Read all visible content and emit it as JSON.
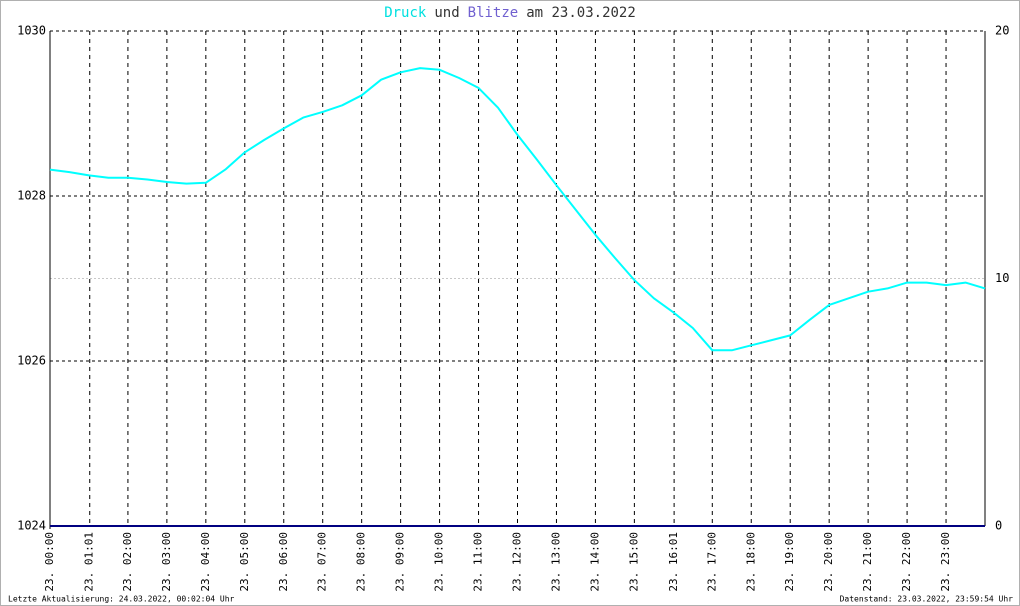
{
  "chart_data": {
    "type": "line",
    "title_connector": "und",
    "title_date": "am 23.03.2022",
    "footer_left": "Letzte Aktualisierung: 24.03.2022, 00:02:04 Uhr",
    "footer_right": "Datenstand: 23.03.2022, 23:59:54 Uhr",
    "xlim": [
      0,
      24
    ],
    "xticks": [
      {
        "value": 0,
        "label": "23. 00:00"
      },
      {
        "value": 1.02,
        "label": "23. 01:01"
      },
      {
        "value": 2,
        "label": "23. 02:00"
      },
      {
        "value": 3,
        "label": "23. 03:00"
      },
      {
        "value": 4,
        "label": "23. 04:00"
      },
      {
        "value": 5,
        "label": "23. 05:00"
      },
      {
        "value": 6,
        "label": "23. 06:00"
      },
      {
        "value": 7,
        "label": "23. 07:00"
      },
      {
        "value": 8,
        "label": "23. 08:00"
      },
      {
        "value": 9,
        "label": "23. 09:00"
      },
      {
        "value": 10,
        "label": "23. 10:00"
      },
      {
        "value": 11,
        "label": "23. 11:00"
      },
      {
        "value": 12,
        "label": "23. 12:00"
      },
      {
        "value": 13,
        "label": "23. 13:00"
      },
      {
        "value": 14,
        "label": "23. 14:00"
      },
      {
        "value": 15,
        "label": "23. 15:00"
      },
      {
        "value": 16.02,
        "label": "23. 16:01"
      },
      {
        "value": 17,
        "label": "23. 17:00"
      },
      {
        "value": 18,
        "label": "23. 18:00"
      },
      {
        "value": 19,
        "label": "23. 19:00"
      },
      {
        "value": 20,
        "label": "23. 20:00"
      },
      {
        "value": 21,
        "label": "23. 21:00"
      },
      {
        "value": 22,
        "label": "23. 22:00"
      },
      {
        "value": 23,
        "label": "23. 23:00"
      }
    ],
    "ylim": [
      1024,
      1030
    ],
    "yticks": [
      1024,
      1026,
      1028,
      1030
    ],
    "y2lim": [
      0,
      20
    ],
    "y2ticks": [
      0,
      10,
      20
    ],
    "grid": true,
    "series": [
      {
        "name": "Druck",
        "color": "#00ffff",
        "x": [
          0,
          0.5,
          1,
          1.5,
          2,
          2.5,
          3,
          3.5,
          4,
          4.5,
          5,
          5.5,
          6,
          6.5,
          7,
          7.5,
          8,
          8.5,
          9,
          9.5,
          10,
          10.5,
          11,
          11.5,
          12,
          12.5,
          13,
          13.5,
          14,
          14.5,
          15,
          15.5,
          16,
          16.5,
          17,
          17.5,
          18,
          18.5,
          19,
          19.5,
          20,
          20.5,
          21,
          21.5,
          22,
          22.5,
          23,
          23.5,
          24
        ],
        "values": [
          1028.32,
          1028.29,
          1028.25,
          1028.22,
          1028.22,
          1028.2,
          1028.17,
          1028.15,
          1028.16,
          1028.32,
          1028.53,
          1028.68,
          1028.82,
          1028.95,
          1029.02,
          1029.1,
          1029.22,
          1029.41,
          1029.5,
          1029.55,
          1029.53,
          1029.43,
          1029.31,
          1029.07,
          1028.74,
          1028.44,
          1028.13,
          1027.83,
          1027.53,
          1027.25,
          1026.98,
          1026.76,
          1026.59,
          1026.4,
          1026.13,
          1026.13,
          1026.19,
          1026.25,
          1026.31,
          1026.5,
          1026.68,
          1026.76,
          1026.84,
          1026.88,
          1026.95,
          1026.95,
          1026.92,
          1026.95,
          1026.88
        ]
      },
      {
        "name": "Blitze",
        "color": "#7060d0",
        "line_color": "#000080",
        "axis": "y2",
        "x": [
          0,
          24
        ],
        "values": [
          0,
          0
        ]
      }
    ]
  }
}
